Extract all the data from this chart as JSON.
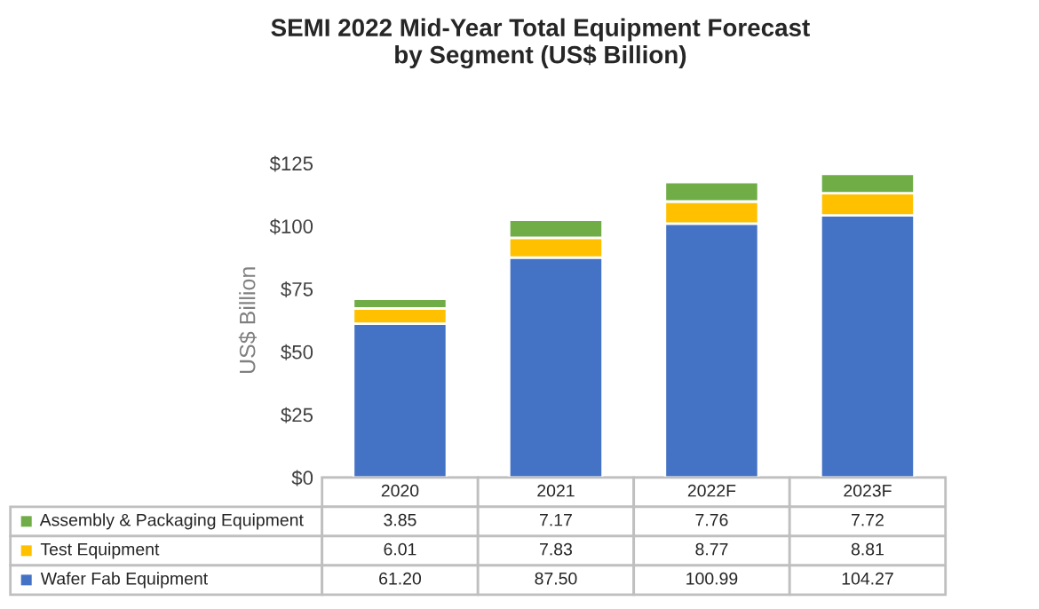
{
  "chart_data": {
    "type": "bar",
    "title": "SEMI 2022 Mid-Year Total Equipment Forecast\nby Segment (US$ Billion)",
    "ylabel": "US$ Billion",
    "categories": [
      "2020",
      "2021",
      "2022F",
      "2023F"
    ],
    "stacked": true,
    "legend": "bottom",
    "grid": false,
    "ylim": [
      0,
      125
    ],
    "yticks": [
      {
        "value": 0,
        "label": "$0"
      },
      {
        "value": 25,
        "label": "$25"
      },
      {
        "value": 50,
        "label": "$50"
      },
      {
        "value": 75,
        "label": "$75"
      },
      {
        "value": 100,
        "label": "$100"
      },
      {
        "value": 125,
        "label": "$125"
      }
    ],
    "series": [
      {
        "name": "Wafer Fab Equipment",
        "color": "#4472c4",
        "values": [
          61.2,
          87.5,
          100.99,
          104.27
        ],
        "value_labels": [
          "61.20",
          "87.50",
          "100.99",
          "104.27"
        ]
      },
      {
        "name": "Test Equipment",
        "color": "#ffc000",
        "values": [
          6.01,
          7.83,
          8.77,
          8.81
        ],
        "value_labels": [
          "6.01",
          "7.83",
          "8.77",
          "8.81"
        ]
      },
      {
        "name": "Assembly & Packaging Equipment",
        "color": "#70ad47",
        "values": [
          3.85,
          7.17,
          7.76,
          7.72
        ],
        "value_labels": [
          "3.85",
          "7.17",
          "7.76",
          "7.72"
        ]
      }
    ]
  }
}
